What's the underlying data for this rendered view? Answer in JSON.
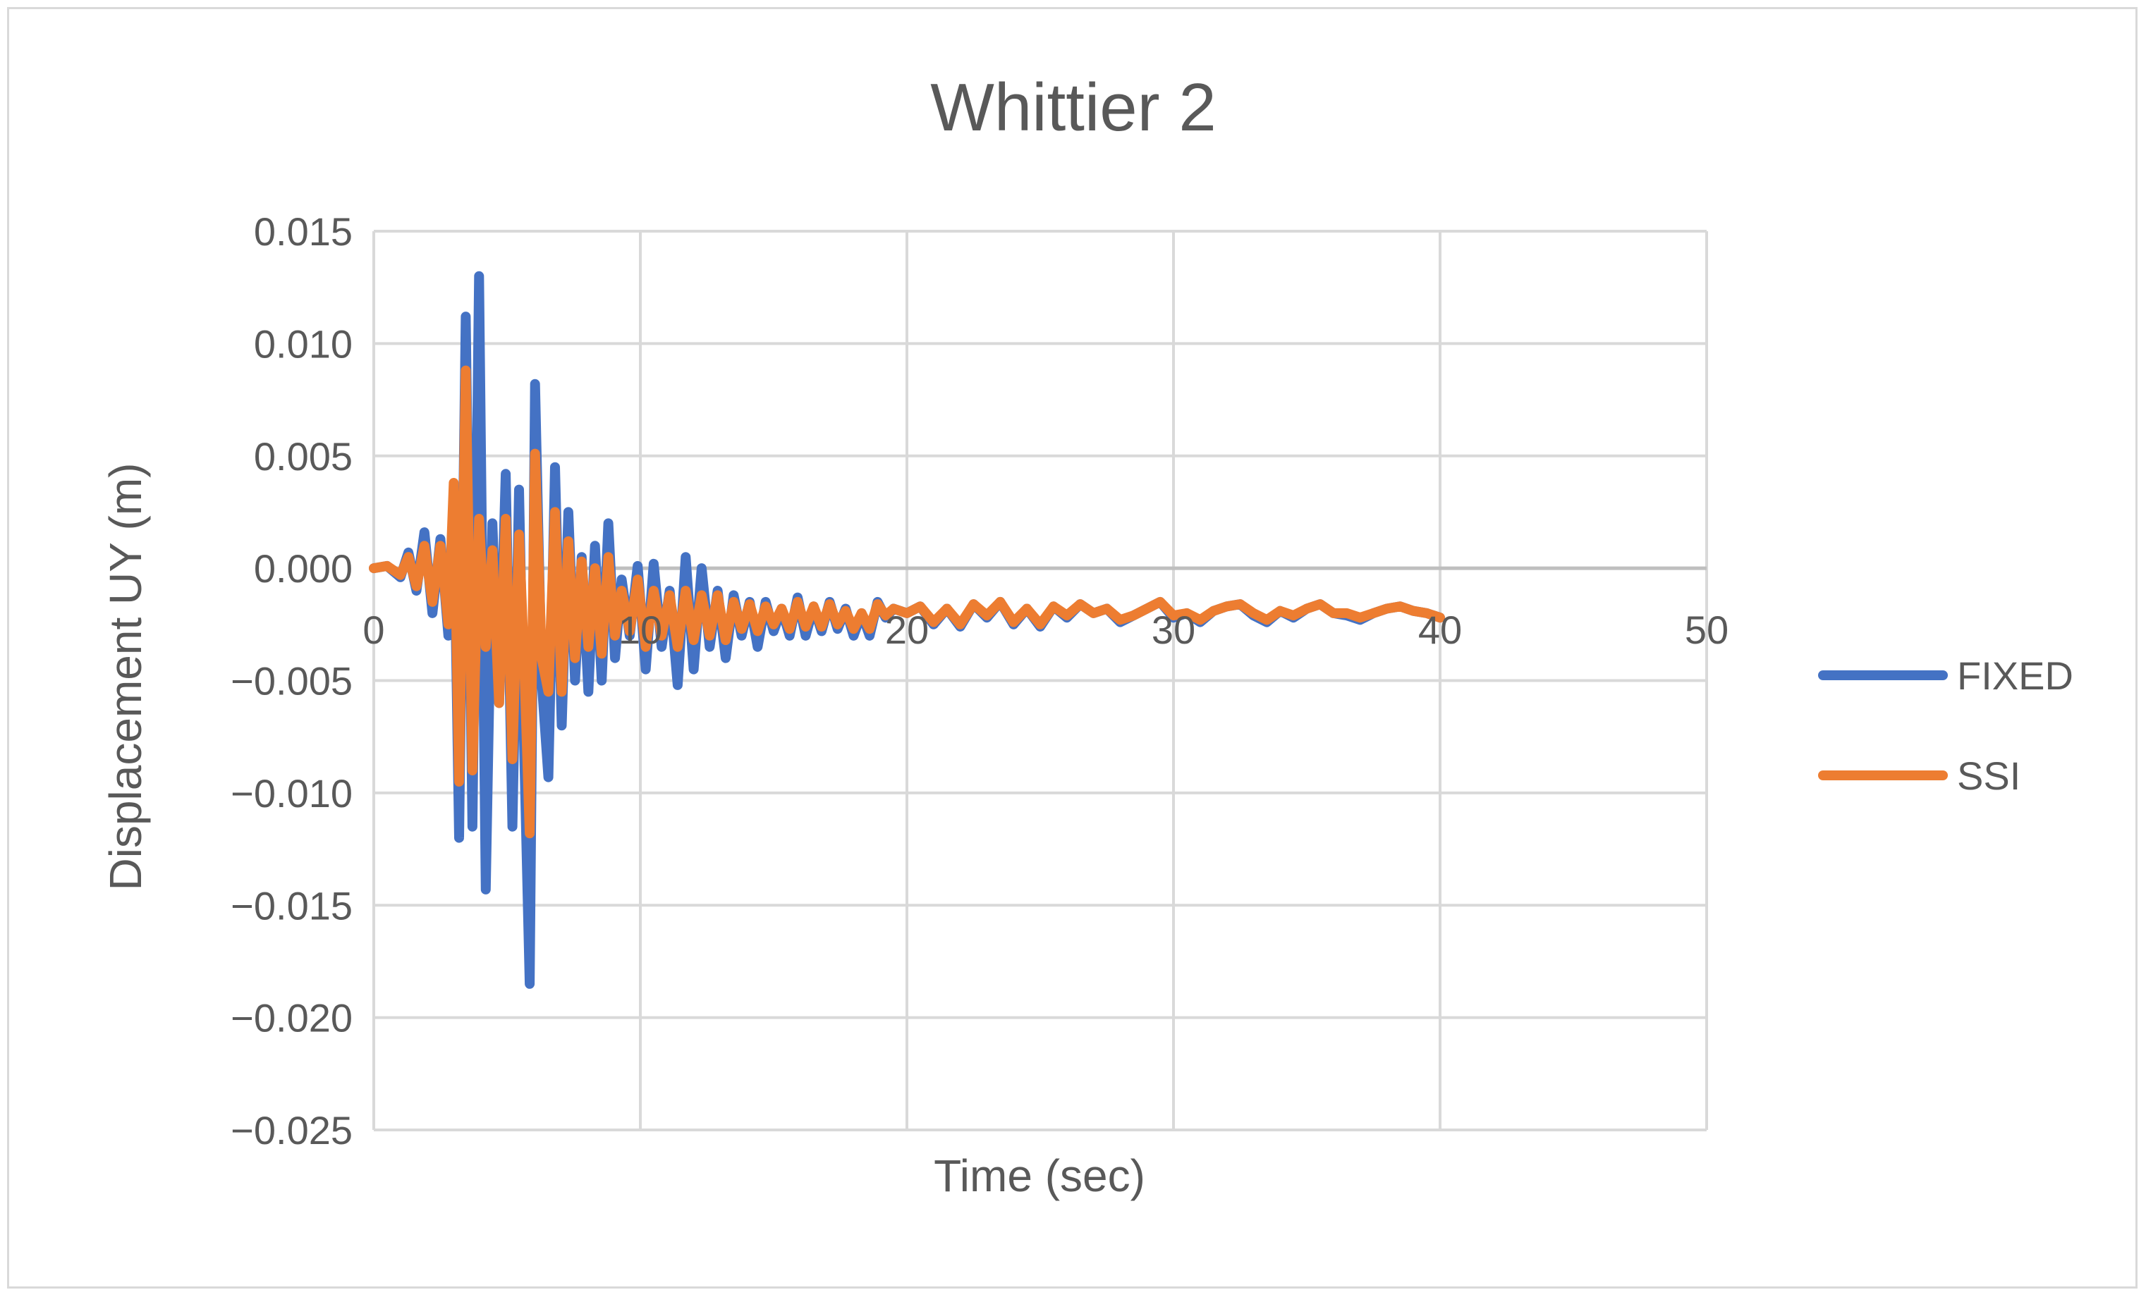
{
  "chart_data": {
    "type": "line",
    "title": "Whittier 2",
    "xlabel": "Time (sec)",
    "ylabel": "Displacement UY (m)",
    "xlim": [
      0,
      50
    ],
    "ylim": [
      -0.025,
      0.015
    ],
    "xticks": [
      "0",
      "10",
      "20",
      "30",
      "40",
      "50"
    ],
    "yticks": [
      "0.015",
      "0.010",
      "0.005",
      "0.000",
      "−0.005",
      "−0.010",
      "−0.015",
      "−0.020",
      "−0.025"
    ],
    "grid": true,
    "legend_position": "right",
    "series": [
      {
        "name": "FIXED",
        "color": "#4472c4",
        "points": [
          [
            0,
            0
          ],
          [
            0.5,
            0.0001
          ],
          [
            1,
            -0.0004
          ],
          [
            1.3,
            0.0007
          ],
          [
            1.6,
            -0.001
          ],
          [
            1.9,
            0.0016
          ],
          [
            2.2,
            -0.002
          ],
          [
            2.5,
            0.0013
          ],
          [
            2.8,
            -0.003
          ],
          [
            3.0,
            0.003
          ],
          [
            3.2,
            -0.012
          ],
          [
            3.45,
            0.0112
          ],
          [
            3.7,
            -0.0115
          ],
          [
            3.95,
            0.013
          ],
          [
            4.2,
            -0.0143
          ],
          [
            4.45,
            0.002
          ],
          [
            4.7,
            -0.006
          ],
          [
            4.95,
            0.0042
          ],
          [
            5.2,
            -0.0115
          ],
          [
            5.45,
            0.0035
          ],
          [
            5.65,
            -0.0085
          ],
          [
            5.85,
            -0.0185
          ],
          [
            6.05,
            0.0082
          ],
          [
            6.3,
            -0.005
          ],
          [
            6.55,
            -0.0093
          ],
          [
            6.8,
            0.0045
          ],
          [
            7.05,
            -0.007
          ],
          [
            7.3,
            0.0025
          ],
          [
            7.55,
            -0.005
          ],
          [
            7.8,
            0.0005
          ],
          [
            8.05,
            -0.0055
          ],
          [
            8.3,
            0.001
          ],
          [
            8.55,
            -0.005
          ],
          [
            8.8,
            0.002
          ],
          [
            9.05,
            -0.004
          ],
          [
            9.3,
            -0.0005
          ],
          [
            9.6,
            -0.003
          ],
          [
            9.9,
            0.0001
          ],
          [
            10.2,
            -0.0045
          ],
          [
            10.5,
            0.0002
          ],
          [
            10.8,
            -0.0035
          ],
          [
            11.1,
            -0.001
          ],
          [
            11.4,
            -0.0052
          ],
          [
            11.7,
            0.0005
          ],
          [
            12.0,
            -0.0045
          ],
          [
            12.3,
            0
          ],
          [
            12.6,
            -0.0035
          ],
          [
            12.9,
            -0.001
          ],
          [
            13.2,
            -0.004
          ],
          [
            13.5,
            -0.0012
          ],
          [
            13.8,
            -0.003
          ],
          [
            14.1,
            -0.0015
          ],
          [
            14.4,
            -0.0035
          ],
          [
            14.7,
            -0.0015
          ],
          [
            15.0,
            -0.0028
          ],
          [
            15.3,
            -0.0018
          ],
          [
            15.6,
            -0.003
          ],
          [
            15.9,
            -0.0013
          ],
          [
            16.2,
            -0.003
          ],
          [
            16.5,
            -0.0017
          ],
          [
            16.8,
            -0.0028
          ],
          [
            17.1,
            -0.0015
          ],
          [
            17.4,
            -0.0027
          ],
          [
            17.7,
            -0.0018
          ],
          [
            18.0,
            -0.003
          ],
          [
            18.3,
            -0.002
          ],
          [
            18.6,
            -0.003
          ],
          [
            18.9,
            -0.0015
          ],
          [
            19.2,
            -0.0022
          ],
          [
            19.5,
            -0.0018
          ],
          [
            20.0,
            -0.002
          ],
          [
            20.5,
            -0.0017
          ],
          [
            21.0,
            -0.0025
          ],
          [
            21.5,
            -0.0018
          ],
          [
            22.0,
            -0.0026
          ],
          [
            22.5,
            -0.0016
          ],
          [
            23.0,
            -0.0022
          ],
          [
            23.5,
            -0.0015
          ],
          [
            24.0,
            -0.0025
          ],
          [
            24.5,
            -0.0018
          ],
          [
            25.0,
            -0.0026
          ],
          [
            25.5,
            -0.0017
          ],
          [
            26.0,
            -0.0022
          ],
          [
            26.5,
            -0.0016
          ],
          [
            27.0,
            -0.002
          ],
          [
            27.5,
            -0.0018
          ],
          [
            28.0,
            -0.0024
          ],
          [
            28.5,
            -0.0021
          ],
          [
            29.0,
            -0.0018
          ],
          [
            29.5,
            -0.0015
          ],
          [
            30.0,
            -0.0022
          ],
          [
            30.5,
            -0.002
          ],
          [
            31.0,
            -0.0024
          ],
          [
            31.5,
            -0.0019
          ],
          [
            32.0,
            -0.0017
          ],
          [
            32.5,
            -0.0016
          ],
          [
            33.0,
            -0.0021
          ],
          [
            33.5,
            -0.0024
          ],
          [
            34.0,
            -0.0019
          ],
          [
            34.5,
            -0.0022
          ],
          [
            35.0,
            -0.0018
          ],
          [
            35.5,
            -0.0016
          ],
          [
            36.0,
            -0.002
          ],
          [
            36.5,
            -0.0021
          ],
          [
            37.0,
            -0.0023
          ],
          [
            37.5,
            -0.002
          ],
          [
            38.0,
            -0.0018
          ],
          [
            38.5,
            -0.0017
          ],
          [
            39.0,
            -0.0019
          ],
          [
            39.5,
            -0.002
          ],
          [
            40.0,
            -0.0022
          ]
        ]
      },
      {
        "name": "SSI",
        "color": "#ed7d31",
        "points": [
          [
            0,
            0
          ],
          [
            0.5,
            0.0001
          ],
          [
            1,
            -0.0003
          ],
          [
            1.3,
            0.0005
          ],
          [
            1.6,
            -0.0008
          ],
          [
            1.9,
            0.001
          ],
          [
            2.2,
            -0.0015
          ],
          [
            2.5,
            0.001
          ],
          [
            2.8,
            -0.0025
          ],
          [
            3.0,
            0.0038
          ],
          [
            3.2,
            -0.0095
          ],
          [
            3.45,
            0.0088
          ],
          [
            3.7,
            -0.009
          ],
          [
            3.95,
            0.0022
          ],
          [
            4.2,
            -0.0035
          ],
          [
            4.45,
            0.0008
          ],
          [
            4.7,
            -0.006
          ],
          [
            4.95,
            0.0022
          ],
          [
            5.2,
            -0.0085
          ],
          [
            5.45,
            0.0015
          ],
          [
            5.65,
            -0.0045
          ],
          [
            5.85,
            -0.0118
          ],
          [
            6.05,
            0.0051
          ],
          [
            6.3,
            -0.004
          ],
          [
            6.55,
            -0.0055
          ],
          [
            6.8,
            0.0025
          ],
          [
            7.05,
            -0.0055
          ],
          [
            7.3,
            0.0012
          ],
          [
            7.55,
            -0.004
          ],
          [
            7.8,
            0.0003
          ],
          [
            8.05,
            -0.0035
          ],
          [
            8.3,
            0
          ],
          [
            8.55,
            -0.0038
          ],
          [
            8.8,
            0.0005
          ],
          [
            9.05,
            -0.003
          ],
          [
            9.3,
            -0.001
          ],
          [
            9.6,
            -0.0028
          ],
          [
            9.9,
            -0.0005
          ],
          [
            10.2,
            -0.0035
          ],
          [
            10.5,
            -0.001
          ],
          [
            10.8,
            -0.003
          ],
          [
            11.1,
            -0.0012
          ],
          [
            11.4,
            -0.0035
          ],
          [
            11.7,
            -0.001
          ],
          [
            12.0,
            -0.0032
          ],
          [
            12.3,
            -0.0012
          ],
          [
            12.6,
            -0.003
          ],
          [
            12.9,
            -0.0012
          ],
          [
            13.2,
            -0.0032
          ],
          [
            13.5,
            -0.0015
          ],
          [
            13.8,
            -0.0027
          ],
          [
            14.1,
            -0.0016
          ],
          [
            14.4,
            -0.0028
          ],
          [
            14.7,
            -0.0017
          ],
          [
            15.0,
            -0.0025
          ],
          [
            15.3,
            -0.0018
          ],
          [
            15.6,
            -0.0027
          ],
          [
            15.9,
            -0.0015
          ],
          [
            16.2,
            -0.0026
          ],
          [
            16.5,
            -0.0017
          ],
          [
            16.8,
            -0.0026
          ],
          [
            17.1,
            -0.0016
          ],
          [
            17.4,
            -0.0025
          ],
          [
            17.7,
            -0.0019
          ],
          [
            18.0,
            -0.0027
          ],
          [
            18.3,
            -0.002
          ],
          [
            18.6,
            -0.0027
          ],
          [
            18.9,
            -0.0016
          ],
          [
            19.2,
            -0.0021
          ],
          [
            19.5,
            -0.0018
          ],
          [
            20.0,
            -0.002
          ],
          [
            20.5,
            -0.0017
          ],
          [
            21.0,
            -0.0024
          ],
          [
            21.5,
            -0.0018
          ],
          [
            22.0,
            -0.0025
          ],
          [
            22.5,
            -0.0016
          ],
          [
            23.0,
            -0.0021
          ],
          [
            23.5,
            -0.0015
          ],
          [
            24.0,
            -0.0024
          ],
          [
            24.5,
            -0.0018
          ],
          [
            25.0,
            -0.0025
          ],
          [
            25.5,
            -0.0017
          ],
          [
            26.0,
            -0.0021
          ],
          [
            26.5,
            -0.0016
          ],
          [
            27.0,
            -0.002
          ],
          [
            27.5,
            -0.0018
          ],
          [
            28.0,
            -0.0023
          ],
          [
            28.5,
            -0.0021
          ],
          [
            29.0,
            -0.0018
          ],
          [
            29.5,
            -0.0015
          ],
          [
            30.0,
            -0.0021
          ],
          [
            30.5,
            -0.002
          ],
          [
            31.0,
            -0.0023
          ],
          [
            31.5,
            -0.0019
          ],
          [
            32.0,
            -0.0017
          ],
          [
            32.5,
            -0.0016
          ],
          [
            33.0,
            -0.002
          ],
          [
            33.5,
            -0.0023
          ],
          [
            34.0,
            -0.0019
          ],
          [
            34.5,
            -0.0021
          ],
          [
            35.0,
            -0.0018
          ],
          [
            35.5,
            -0.0016
          ],
          [
            36.0,
            -0.002
          ],
          [
            36.5,
            -0.002
          ],
          [
            37.0,
            -0.0022
          ],
          [
            37.5,
            -0.002
          ],
          [
            38.0,
            -0.0018
          ],
          [
            38.5,
            -0.0017
          ],
          [
            39.0,
            -0.0019
          ],
          [
            39.5,
            -0.002
          ],
          [
            40.0,
            -0.0022
          ]
        ]
      }
    ]
  }
}
